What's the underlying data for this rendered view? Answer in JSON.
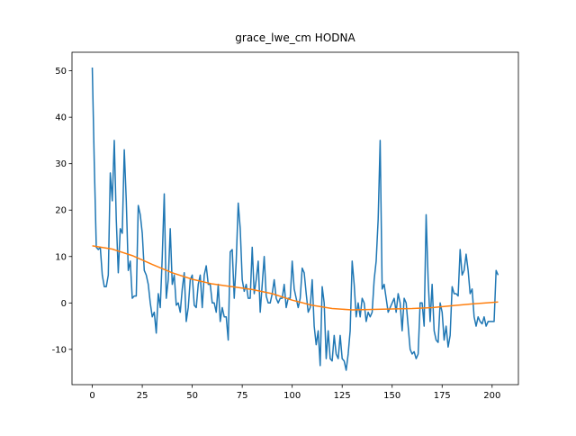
{
  "chart_data": {
    "type": "line",
    "title": "grace_lwe_cm HODNA",
    "xlim": [
      -10.15,
      213.15
    ],
    "ylim": [
      -17.6,
      54
    ],
    "xticks": [
      0,
      25,
      50,
      75,
      100,
      125,
      150,
      175,
      200
    ],
    "yticks": [
      -10,
      0,
      10,
      20,
      30,
      40,
      50
    ],
    "series": [
      {
        "color": "#1f77b4",
        "x": [
          0,
          1,
          2,
          3,
          4,
          5,
          6,
          7,
          8,
          9,
          10,
          11,
          12,
          13,
          14,
          15,
          16,
          17,
          18,
          19,
          20,
          21,
          22,
          23,
          24,
          25,
          26,
          27,
          28,
          29,
          30,
          31,
          32,
          33,
          34,
          35,
          36,
          37,
          38,
          39,
          40,
          41,
          42,
          43,
          44,
          45,
          46,
          47,
          48,
          49,
          50,
          51,
          52,
          53,
          54,
          55,
          56,
          57,
          58,
          59,
          60,
          61,
          62,
          63,
          64,
          65,
          66,
          67,
          68,
          69,
          70,
          71,
          72,
          73,
          74,
          75,
          76,
          77,
          78,
          79,
          80,
          81,
          82,
          83,
          84,
          85,
          86,
          87,
          88,
          89,
          90,
          91,
          92,
          93,
          94,
          95,
          96,
          97,
          98,
          99,
          100,
          101,
          102,
          103,
          104,
          105,
          106,
          107,
          108,
          109,
          110,
          111,
          112,
          113,
          114,
          115,
          116,
          117,
          118,
          119,
          120,
          121,
          122,
          123,
          124,
          125,
          126,
          127,
          128,
          129,
          130,
          131,
          132,
          133,
          134,
          135,
          136,
          137,
          138,
          139,
          140,
          141,
          142,
          143,
          144,
          145,
          146,
          147,
          148,
          149,
          150,
          151,
          152,
          153,
          154,
          155,
          156,
          157,
          158,
          159,
          160,
          161,
          162,
          163,
          164,
          165,
          166,
          167,
          168,
          169,
          170,
          171,
          172,
          173,
          174,
          175,
          176,
          177,
          178,
          179,
          180,
          181,
          182,
          183,
          184,
          185,
          186,
          187,
          188,
          189,
          190,
          191,
          192,
          193,
          194,
          195,
          196,
          197,
          198,
          199,
          200,
          201,
          202,
          203
        ],
        "values": [
          50.7,
          30,
          12,
          11.5,
          12,
          6,
          3.5,
          3.5,
          6,
          28,
          22,
          35,
          18,
          6.5,
          16,
          15,
          33,
          22,
          7,
          9,
          1,
          1.5,
          1.5,
          21,
          19,
          15,
          7,
          6,
          4,
          0,
          -3,
          -2,
          -6.5,
          2,
          -1,
          10,
          23.5,
          1,
          5,
          16,
          4,
          6,
          -0.5,
          0,
          -2,
          3,
          6.5,
          -4,
          -1,
          5,
          6,
          -0.5,
          -1,
          4,
          6,
          -1,
          6,
          8,
          4,
          4,
          0,
          0,
          -2,
          4,
          -4,
          -1,
          -3,
          -3,
          -8,
          11,
          11.5,
          1,
          9,
          21.5,
          16,
          5,
          2.5,
          4,
          1,
          1,
          12,
          2,
          5,
          9,
          -2,
          4,
          10,
          1.5,
          0,
          0,
          2,
          5,
          1,
          0,
          1,
          1,
          4,
          -1,
          1,
          1,
          9,
          3,
          1,
          -1,
          1,
          7.5,
          6.5,
          2,
          -2,
          -1,
          5,
          -5,
          -9,
          -6,
          -13.5,
          3.5,
          0,
          -12,
          -6,
          -12,
          -12.5,
          -7,
          -11,
          -12,
          -7,
          -12,
          -12.5,
          -14.5,
          -11,
          -6,
          9,
          4,
          -3,
          0,
          -3,
          1,
          0,
          -4,
          -2,
          -3,
          -2,
          5,
          9,
          18,
          35,
          3,
          4,
          1,
          -2,
          -1,
          0,
          1,
          -2,
          2,
          0,
          -6,
          1,
          0,
          -5,
          -10,
          -11,
          -10.5,
          -12,
          -11,
          0,
          0,
          -5,
          19,
          5,
          -4,
          4,
          -6,
          -8,
          -8.5,
          0,
          -2,
          -8,
          -5,
          -9.5,
          -7,
          3.5,
          2,
          2,
          1.5,
          11.5,
          6,
          7,
          10.5,
          7,
          2,
          3,
          -3,
          -5,
          -3,
          -4,
          -4.5,
          -3,
          -5,
          -4,
          -4,
          -4,
          -4,
          7,
          6
        ]
      },
      {
        "color": "#ff7f0e",
        "x": [
          0,
          10,
          20,
          30,
          40,
          50,
          60,
          70,
          80,
          90,
          100,
          110,
          120,
          130,
          140,
          150,
          160,
          170,
          180,
          190,
          200,
          203
        ],
        "values": [
          12.3,
          11.6,
          10.2,
          8.3,
          6.5,
          5.1,
          4.1,
          3.5,
          2.9,
          2.0,
          0.6,
          -0.5,
          -1.2,
          -1.5,
          -1.4,
          -1.3,
          -1.2,
          -1.0,
          -0.6,
          -0.2,
          0.1,
          0.2
        ]
      }
    ]
  }
}
